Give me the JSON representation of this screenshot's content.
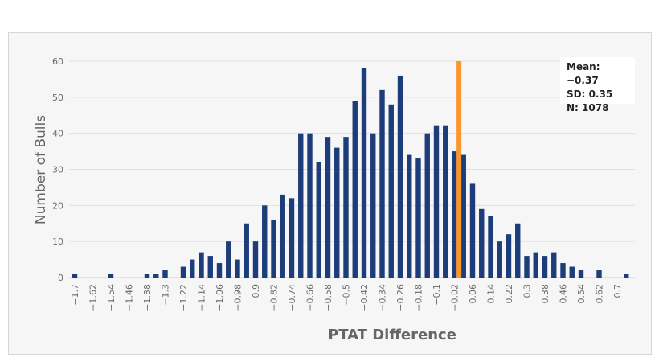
{
  "chart_data": {
    "type": "bar",
    "xlabel": "PTAT Difference",
    "ylabel": "Number of Bulls",
    "ylim": [
      0,
      60
    ],
    "yticks": [
      0,
      10,
      20,
      30,
      40,
      50,
      60
    ],
    "grid": true,
    "categories": [
      "-1.7",
      "-1.66",
      "-1.62",
      "-1.58",
      "-1.54",
      "-1.5",
      "-1.46",
      "-1.42",
      "-1.38",
      "-1.34",
      "-1.3",
      "-1.26",
      "-1.22",
      "-1.18",
      "-1.14",
      "-1.1",
      "-1.06",
      "-1.02",
      "-0.98",
      "-0.94",
      "-0.9",
      "-0.86",
      "-0.82",
      "-0.78",
      "-0.74",
      "-0.7",
      "-0.66",
      "-0.62",
      "-0.58",
      "-0.54",
      "-0.5",
      "-0.46",
      "-0.42",
      "-0.38",
      "-0.34",
      "-0.3",
      "-0.26",
      "-0.22",
      "-0.18",
      "-0.14",
      "-0.1",
      "-0.06",
      "-0.02",
      "0.02",
      "0.06",
      "0.1",
      "0.14",
      "0.18",
      "0.22",
      "0.26",
      "0.3",
      "0.34",
      "0.38",
      "0.42",
      "0.46",
      "0.5",
      "0.54",
      "0.58",
      "0.62",
      "0.66",
      "0.7",
      "0.74"
    ],
    "values": [
      1,
      0,
      0,
      0,
      1,
      0,
      0,
      0,
      1,
      1,
      2,
      0,
      3,
      5,
      7,
      6,
      4,
      10,
      5,
      15,
      10,
      20,
      16,
      23,
      22,
      40,
      40,
      32,
      39,
      36,
      39,
      49,
      58,
      40,
      52,
      48,
      56,
      34,
      33,
      40,
      42,
      42,
      35,
      34,
      26,
      19,
      17,
      10,
      12,
      15,
      6,
      7,
      6,
      7,
      4,
      3,
      2,
      0,
      2,
      0,
      0,
      1
    ],
    "tick_label_every": 2,
    "reference_line": {
      "x": 0,
      "color": "#f7972e"
    },
    "bar_color": "#1c3c7a",
    "annotation": {
      "mean": "Mean: −0.37",
      "sd": "SD: 0.35",
      "n": "N: 1078"
    }
  }
}
